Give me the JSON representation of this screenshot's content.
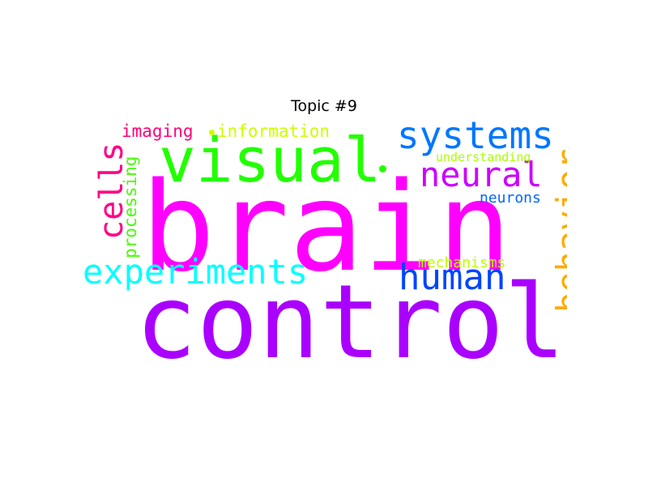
{
  "title": "Topic #9",
  "words": [
    {
      "text": "brain",
      "color": "#ff00ff"
    },
    {
      "text": "control",
      "color": "#aa00ff"
    },
    {
      "text": "visual",
      "color": "#22ff00"
    },
    {
      "text": "systems",
      "color": "#0077ff"
    },
    {
      "text": "neural",
      "color": "#cc00ff"
    },
    {
      "text": "experiments",
      "color": "#00ffff"
    },
    {
      "text": "human",
      "color": "#0044ff"
    },
    {
      "text": "behavior",
      "color": "#ffaa00"
    },
    {
      "text": "cells",
      "color": "#ff0088"
    },
    {
      "text": "imaging",
      "color": "#ff0077"
    },
    {
      "text": "information",
      "color": "#ccff00"
    },
    {
      "text": "processing",
      "color": "#44ff00"
    },
    {
      "text": "understanding",
      "color": "#aaff00"
    },
    {
      "text": "neurons",
      "color": "#0066ff"
    },
    {
      "text": "mechanisms",
      "color": "#bbff00"
    }
  ]
}
